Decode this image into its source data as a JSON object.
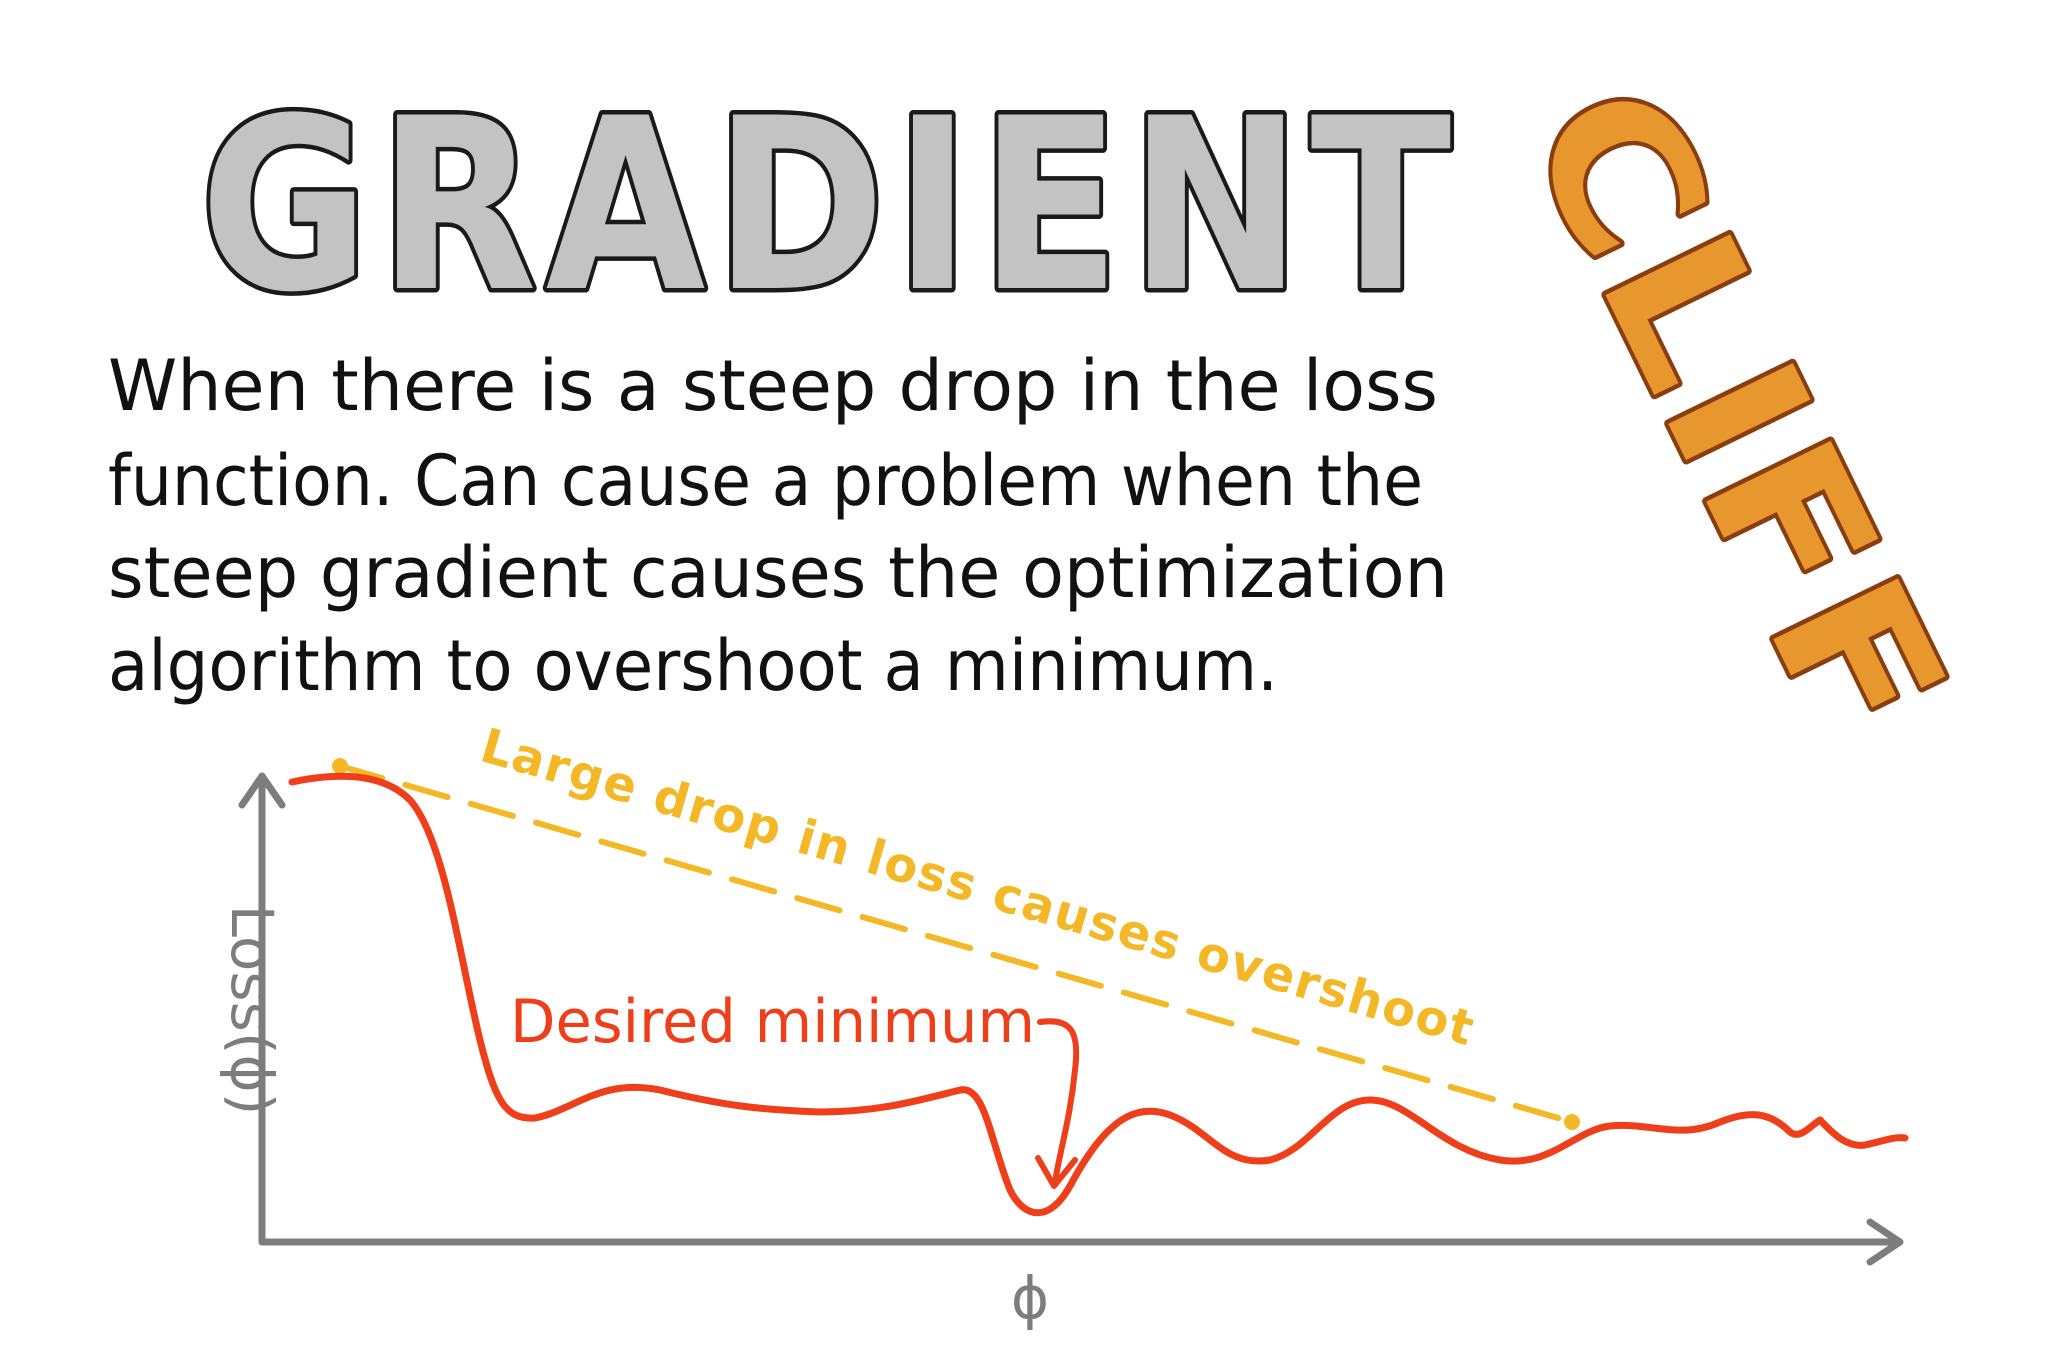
{
  "title": {
    "main": "GRADIENT",
    "accent": "CLIFF"
  },
  "description": {
    "lines": [
      "When there is a steep drop in the loss",
      "function. Can cause a problem when the",
      "steep gradient causes the optimization",
      "algorithm to overshoot a minimum."
    ]
  },
  "diagram": {
    "y_axis_label": "Loss(ϕ)",
    "x_axis_label": "ϕ",
    "overshoot_label": "Large drop in loss causes overshoot",
    "minimum_label": "Desired minimum"
  },
  "colors": {
    "title_fill": "#c3c3c3",
    "title_outline": "#1a1a1a",
    "cliff_fill": "#e8962e",
    "cliff_outline": "#8a3d0e",
    "axis": "#7d7d7d",
    "curve": "#ee3f1a",
    "overshoot": "#f4b726",
    "text": "#111111"
  }
}
